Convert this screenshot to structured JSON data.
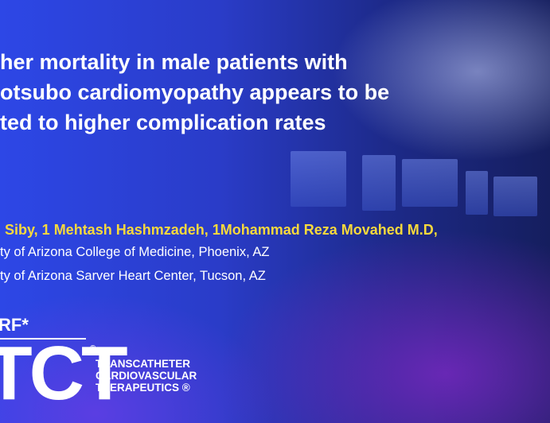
{
  "title": {
    "lines": [
      "her mortality in male patients with",
      "otsubo cardiomyopathy appears to be",
      "ted to higher complication rates"
    ]
  },
  "authors": "Siby, 1 Mehtash Hashmzadeh, 1Mohammad Reza Movahed M.D,",
  "affiliations": [
    "ty of Arizona College of Medicine, Phoenix,  AZ",
    "ty of Arizona Sarver Heart Center, Tucson, AZ"
  ],
  "logo": {
    "org": "RF*",
    "brand": "TCT",
    "mark": "®",
    "tagline": [
      "TRANSCATHETER",
      "CARDIOVASCULAR",
      "THERAPEUTICS ®"
    ]
  }
}
